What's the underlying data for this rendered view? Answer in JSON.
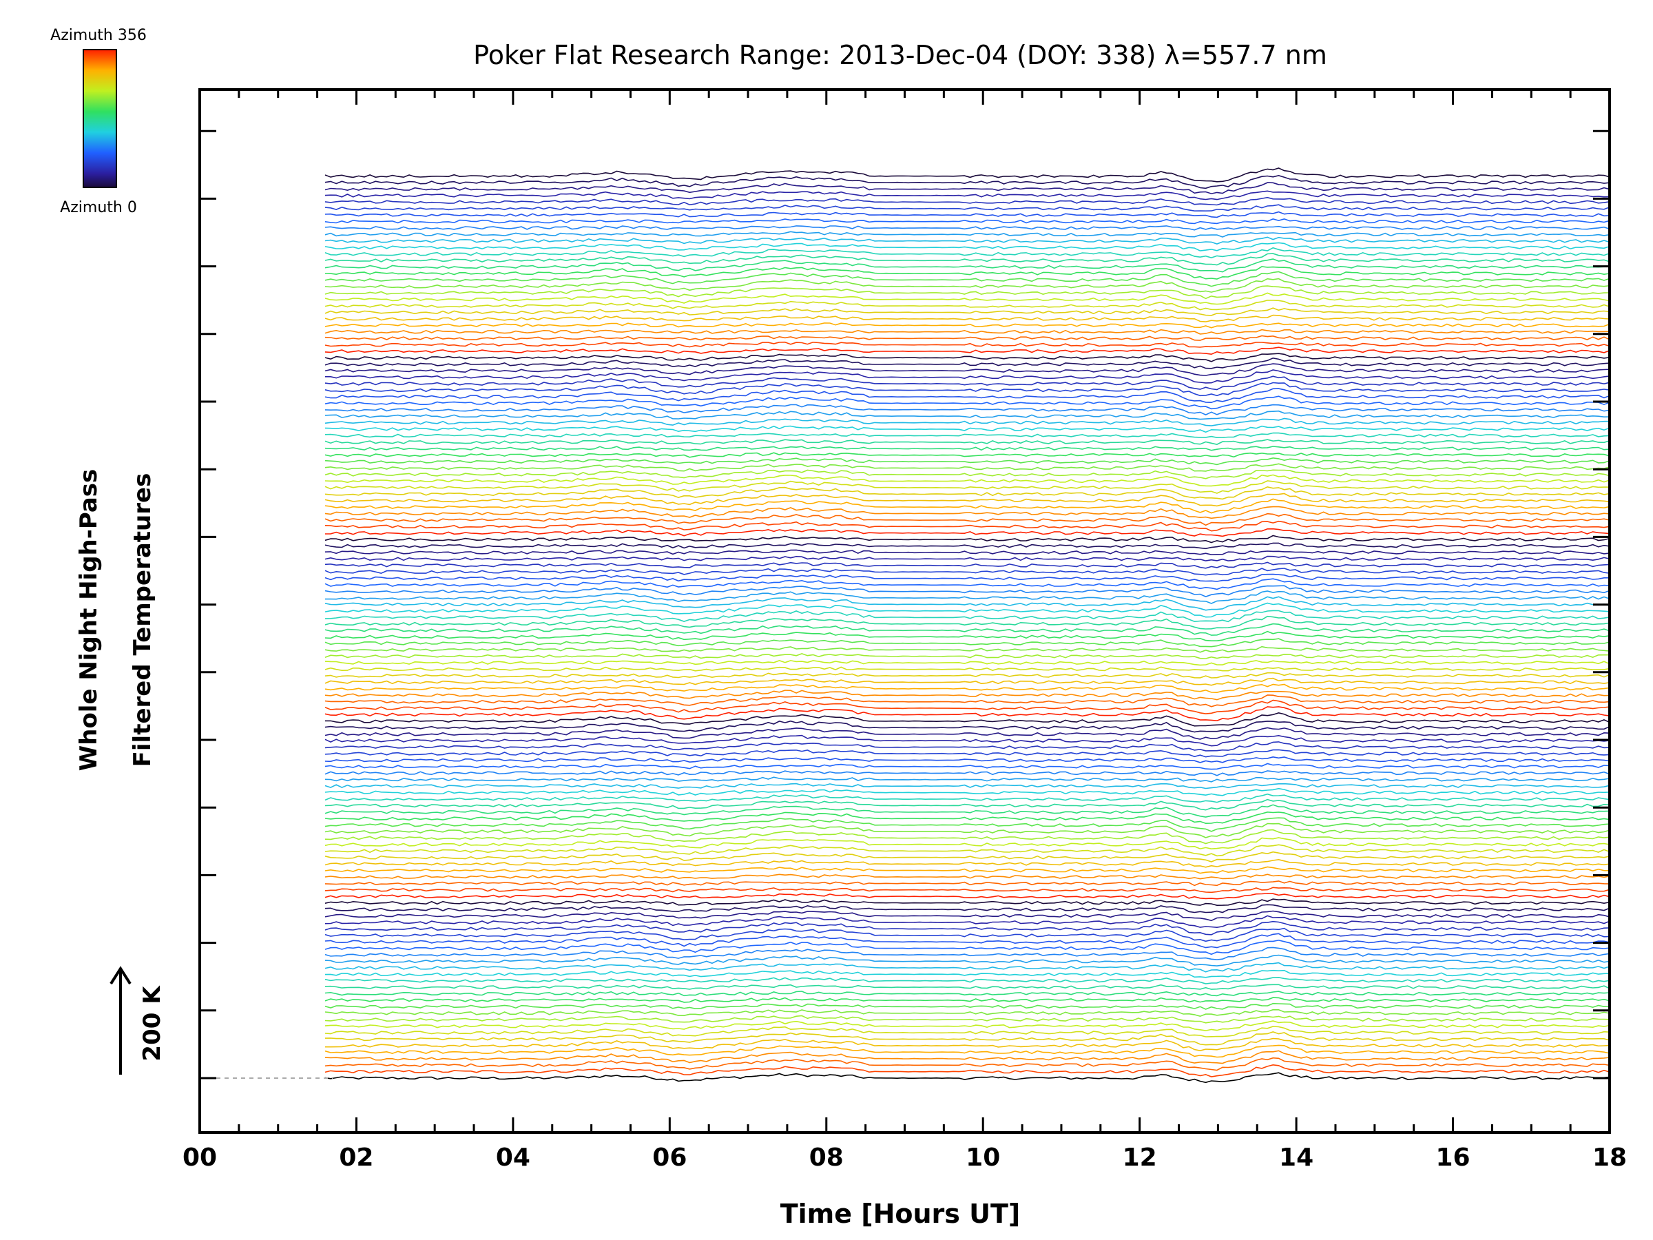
{
  "chart_data": {
    "type": "line",
    "title": "Poker Flat Research Range: 2013-Dec-04 (DOY: 338) λ=557.7 nm",
    "xlabel": "Time [Hours UT]",
    "ylabel_line1": "Whole Night High-Pass",
    "ylabel_line2": "Filtered Temperatures",
    "xlim": [
      0,
      18
    ],
    "x_tick_labels": [
      "00",
      "02",
      "04",
      "06",
      "08",
      "10",
      "12",
      "14",
      "16",
      "18"
    ],
    "x_tick_values": [
      0,
      2,
      4,
      6,
      8,
      10,
      12,
      14,
      16,
      18
    ],
    "data_start_hour": 1.6,
    "data_end_hour": 18.0,
    "series_count": 140,
    "series_spacing_K": 14,
    "scale_bar": {
      "label": "200 K",
      "value_K": 200
    },
    "colorbar": {
      "top_label": "Azimuth 356",
      "bottom_label": "Azimuth 0",
      "min_azimuth": 0,
      "max_azimuth": 356
    },
    "common_features": [
      {
        "hour": 5.3,
        "amplitude_K": 8,
        "width_h": 0.35
      },
      {
        "hour": 6.2,
        "amplitude_K": -7,
        "width_h": 0.25
      },
      {
        "hour": 7.5,
        "amplitude_K": 12,
        "width_h": 0.4
      },
      {
        "hour": 8.2,
        "amplitude_K": 6,
        "width_h": 0.2
      },
      {
        "hour": 12.3,
        "amplitude_K": 10,
        "width_h": 0.15
      },
      {
        "hour": 12.9,
        "amplitude_K": -11,
        "width_h": 0.25
      },
      {
        "hour": 13.7,
        "amplitude_K": 16,
        "width_h": 0.22
      }
    ]
  }
}
